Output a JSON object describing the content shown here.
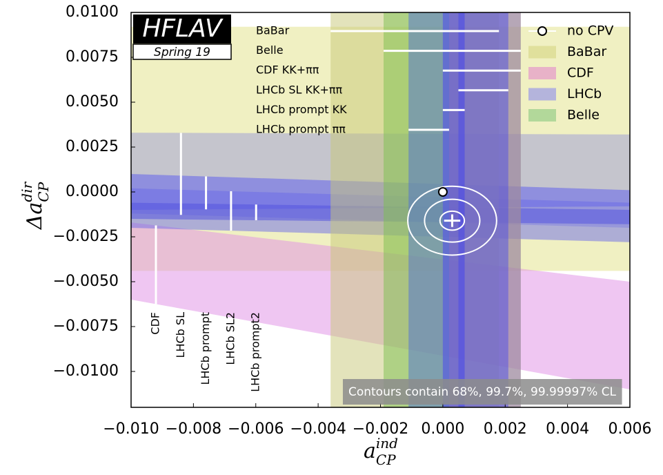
{
  "header": {
    "logo": "HFLAV",
    "edition": "Spring 19"
  },
  "chart_data": {
    "type": "band",
    "x_label": {
      "base": "a",
      "sub": "CP",
      "sup": "ind"
    },
    "y_label": {
      "base": "Δa",
      "sub": "CP",
      "sup": "dir"
    },
    "xlim": [
      -0.01,
      0.006
    ],
    "ylim": [
      -0.012,
      0.01
    ],
    "xticks": [
      {
        "value": -0.01,
        "label": "−0.010"
      },
      {
        "value": -0.008,
        "label": "−0.008"
      },
      {
        "value": -0.006,
        "label": "−0.006"
      },
      {
        "value": -0.004,
        "label": "−0.004"
      },
      {
        "value": -0.002,
        "label": "−0.002"
      },
      {
        "value": 0,
        "label": "0.000"
      },
      {
        "value": 0.002,
        "label": "0.002"
      },
      {
        "value": 0.004,
        "label": "0.004"
      },
      {
        "value": 0.006,
        "label": "0.006"
      }
    ],
    "yticks": [
      {
        "value": -0.01,
        "label": "−0.0100"
      },
      {
        "value": -0.0075,
        "label": "−0.0075"
      },
      {
        "value": -0.005,
        "label": "−0.0050"
      },
      {
        "value": -0.0025,
        "label": "−0.0025"
      },
      {
        "value": 0,
        "label": "0.0000"
      },
      {
        "value": 0.0025,
        "label": "0.0025"
      },
      {
        "value": 0.005,
        "label": "0.0050"
      },
      {
        "value": 0.0075,
        "label": "0.0075"
      },
      {
        "value": 0.01,
        "label": "0.0100"
      }
    ],
    "legend": [
      {
        "name": "no CPV"
      },
      {
        "name": "BaBar",
        "color": "#e0e09c"
      },
      {
        "name": "CDF",
        "color": "#e8b2c8"
      },
      {
        "name": "LHCb",
        "color": "#b4b4dc"
      },
      {
        "name": "Belle",
        "color": "#b2d89a"
      }
    ],
    "y_measurements": [
      {
        "y_left": [
          -0.0044,
          0.0092
        ],
        "y_right": [
          -0.0044,
          0.0092
        ],
        "color": "#e6e69a"
      },
      {
        "name": "CDF",
        "y_left": [
          -0.006,
          -0.0017
        ],
        "y_right": [
          -0.011,
          -0.005
        ],
        "color": "#e08ee6"
      },
      {
        "name": "LHCb SL",
        "y_left": [
          -0.0012,
          0.0033
        ],
        "y_right": [
          -0.002,
          0.0032
        ],
        "color": "#9a9ad8"
      },
      {
        "name": "LHCb prompt",
        "y_left": [
          -0.001,
          0.001
        ],
        "y_right": [
          -0.0008,
          0.0001
        ],
        "color": "#5a5af0"
      },
      {
        "name": "LHCb SL2",
        "y_left": [
          -0.002,
          0.0002
        ],
        "y_right": [
          -0.0028,
          -0.0006
        ],
        "color": "#6a6ae8"
      },
      {
        "name": "LHCb prompt2",
        "y_left": [
          -0.0015,
          -0.0006
        ],
        "y_right": [
          -0.0018,
          -0.001
        ],
        "color": "#5050e0"
      }
    ],
    "x_measurements": [
      {
        "name": "BaBar",
        "range": [
          -0.0036,
          0.0018
        ],
        "color": "#c8c878"
      },
      {
        "name": "Belle",
        "range": [
          -0.0019,
          0.0025
        ],
        "color": "#7cc050"
      },
      {
        "name": "CDF KK+ππ",
        "range": [
          0.0,
          0.0025
        ],
        "color": "#b070c8"
      },
      {
        "name": "LHCb SL KK+ππ",
        "range": [
          0.0005,
          0.0021
        ],
        "color": "#5050e8"
      },
      {
        "name": "LHCb prompt KK",
        "range": [
          0.0,
          0.0007
        ],
        "color": "#4040f0"
      },
      {
        "name": "LHCb prompt ππ",
        "range": [
          -0.0011,
          0.0002
        ],
        "color": "#5070d8"
      }
    ],
    "no_cpv": {
      "x": 0,
      "y": 0
    },
    "fit": {
      "x": 0.0003,
      "y": -0.0016,
      "x_err": 0.00026,
      "y_err": 0.00035,
      "contour_cl": [
        0.68,
        0.997,
        0.9999997
      ]
    },
    "annotation": "Contours contain 68%, 99.7%, 99.99997% CL"
  }
}
